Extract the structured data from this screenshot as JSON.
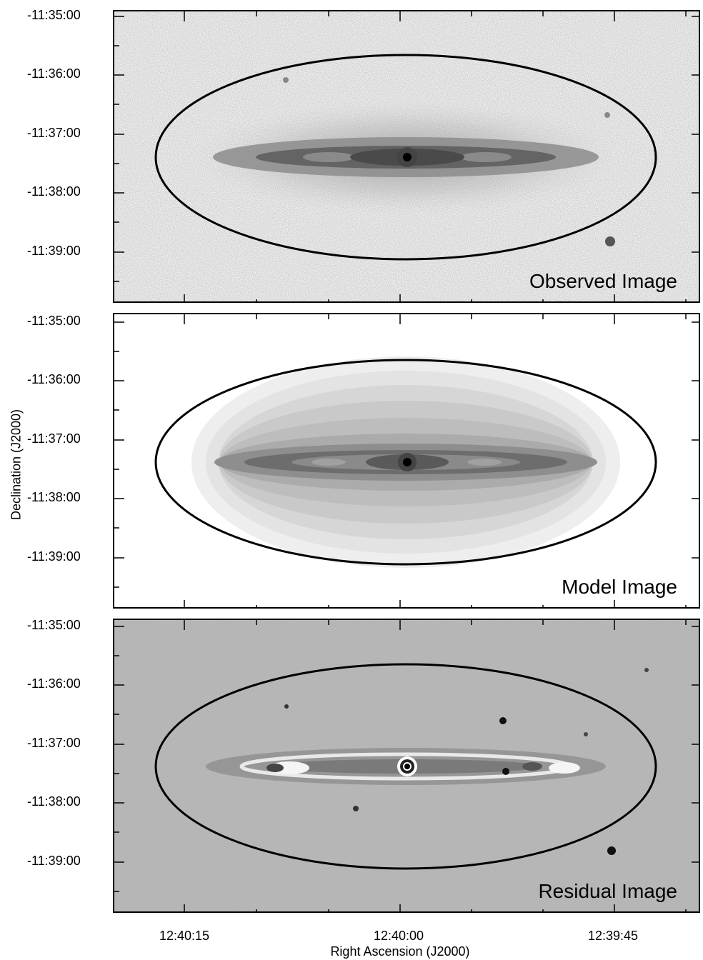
{
  "panels": [
    {
      "label": "Observed Image"
    },
    {
      "label": "Model Image"
    },
    {
      "label": "Residual Image"
    }
  ],
  "y_ticks": [
    "-11:35:00",
    "-11:36:00",
    "-11:37:00",
    "-11:38:00",
    "-11:39:00"
  ],
  "x_ticks": [
    "12:40:15",
    "12:40:00",
    "12:39:45"
  ],
  "xlabel": "Right Ascension (J2000)",
  "ylabel": "Declination (J2000)"
}
